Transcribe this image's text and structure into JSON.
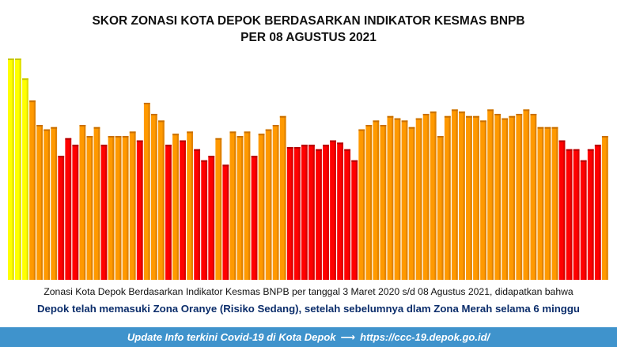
{
  "title_lines": [
    "SKOR ZONASI KOTA DEPOK BERDASARKAN INDIKATOR KESMAS BNPB",
    "PER 08 AGUSTUS  2021"
  ],
  "caption": "Zonasi Kota Depok Berdasarkan Indikator Kesmas BNPB per tanggal 3 Maret 2020 s/d  08 Agustus 2021, didapatkan bahwa",
  "subcaption": "Depok telah memasuki Zona Oranye (Risiko Sedang), setelah sebelumnya dlam Zona Merah selama 6 minggu",
  "footer": {
    "left": "Update Info terkini Covid-19 di Kota Depok",
    "arrow": "⟶",
    "right": "https://ccc-19.depok.go.id/"
  },
  "colors": {
    "yellow": "#ffff00",
    "orange": "#ff9900",
    "red": "#ff0000",
    "footer_bg": "#3f93cc",
    "subcaption": "#0b2d6b"
  },
  "chart_data": {
    "type": "bar",
    "title": "SKOR ZONASI KOTA DEPOK BERDASARKAN INDIKATOR KESMAS BNPB PER 08 AGUSTUS  2021",
    "ylim": [
      0,
      100
    ],
    "grid": false,
    "legend": "none",
    "values": [
      100,
      100,
      91,
      81,
      70,
      68,
      69,
      56,
      64,
      61,
      70,
      65,
      69,
      61,
      65,
      65,
      65,
      67,
      63,
      80,
      75,
      72,
      61,
      66,
      63,
      67,
      59,
      54,
      56,
      64,
      52,
      67,
      65,
      67,
      56,
      66,
      68,
      70,
      74,
      60,
      60,
      61,
      61,
      59,
      61,
      63,
      62,
      59,
      54,
      68,
      70,
      72,
      70,
      74,
      73,
      72,
      69,
      73,
      75,
      76,
      65,
      74,
      77,
      76,
      74,
      74,
      72,
      77,
      75,
      73,
      74,
      75,
      77,
      75,
      69,
      69,
      69,
      63,
      59,
      59,
      54,
      59,
      61,
      65
    ],
    "zones": [
      "yellow",
      "yellow",
      "yellow",
      "orange",
      "orange",
      "orange",
      "orange",
      "red",
      "red",
      "red",
      "orange",
      "orange",
      "orange",
      "red",
      "orange",
      "orange",
      "orange",
      "orange",
      "red",
      "orange",
      "orange",
      "orange",
      "red",
      "orange",
      "red",
      "orange",
      "red",
      "red",
      "red",
      "orange",
      "red",
      "orange",
      "orange",
      "orange",
      "red",
      "orange",
      "orange",
      "orange",
      "orange",
      "red",
      "red",
      "red",
      "red",
      "red",
      "red",
      "red",
      "red",
      "red",
      "red",
      "orange",
      "orange",
      "orange",
      "orange",
      "orange",
      "orange",
      "orange",
      "orange",
      "orange",
      "orange",
      "orange",
      "orange",
      "orange",
      "orange",
      "orange",
      "orange",
      "orange",
      "orange",
      "orange",
      "orange",
      "orange",
      "orange",
      "orange",
      "orange",
      "orange",
      "orange",
      "orange",
      "orange",
      "red",
      "red",
      "red",
      "red",
      "red",
      "red",
      "orange"
    ]
  }
}
